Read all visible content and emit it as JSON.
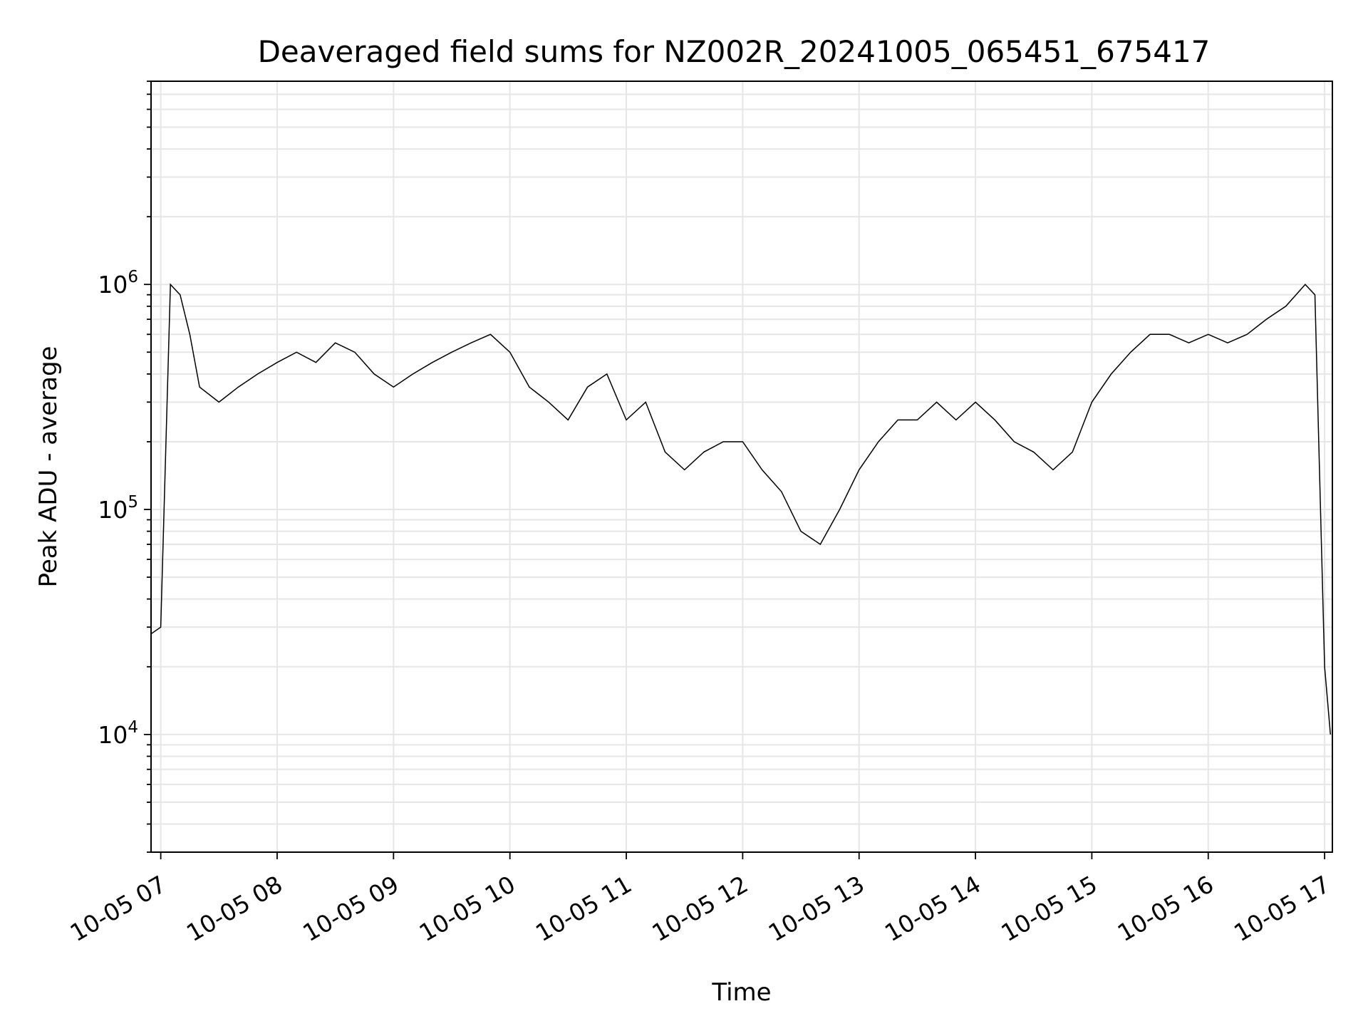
{
  "chart_data": {
    "type": "line",
    "title": "Deaveraged field sums for NZ002R_20241005_065451_675417",
    "xlabel": "Time",
    "ylabel": "Peak ADU - average",
    "yscale": "log",
    "ylim": [
      3000,
      8000000
    ],
    "xlim": [
      "2024-10-05 06:55",
      "2024-10-05 17:04"
    ],
    "grid": true,
    "x_tick_labels": [
      "10-05 07",
      "10-05 08",
      "10-05 09",
      "10-05 10",
      "10-05 11",
      "10-05 12",
      "10-05 13",
      "10-05 14",
      "10-05 15",
      "10-05 16",
      "10-05 17"
    ],
    "y_tick_labels": [
      {
        "base": "10",
        "exp": "4",
        "value": 10000
      },
      {
        "base": "10",
        "exp": "5",
        "value": 100000
      },
      {
        "base": "10",
        "exp": "6",
        "value": 1000000
      }
    ],
    "line_color": "#000000",
    "series": [
      {
        "x": [
          "2024-10-05 06:55",
          "2024-10-05 07:00",
          "2024-10-05 07:05",
          "2024-10-05 07:10",
          "2024-10-05 07:15",
          "2024-10-05 07:20",
          "2024-10-05 07:30",
          "2024-10-05 07:40",
          "2024-10-05 07:50",
          "2024-10-05 08:00",
          "2024-10-05 08:10",
          "2024-10-05 08:20",
          "2024-10-05 08:30",
          "2024-10-05 08:40",
          "2024-10-05 08:50",
          "2024-10-05 09:00",
          "2024-10-05 09:10",
          "2024-10-05 09:20",
          "2024-10-05 09:30",
          "2024-10-05 09:40",
          "2024-10-05 09:50",
          "2024-10-05 10:00",
          "2024-10-05 10:10",
          "2024-10-05 10:20",
          "2024-10-05 10:30",
          "2024-10-05 10:40",
          "2024-10-05 10:50",
          "2024-10-05 11:00",
          "2024-10-05 11:10",
          "2024-10-05 11:20",
          "2024-10-05 11:30",
          "2024-10-05 11:40",
          "2024-10-05 11:50",
          "2024-10-05 12:00",
          "2024-10-05 12:10",
          "2024-10-05 12:20",
          "2024-10-05 12:30",
          "2024-10-05 12:40",
          "2024-10-05 12:50",
          "2024-10-05 13:00",
          "2024-10-05 13:10",
          "2024-10-05 13:20",
          "2024-10-05 13:30",
          "2024-10-05 13:40",
          "2024-10-05 13:50",
          "2024-10-05 14:00",
          "2024-10-05 14:10",
          "2024-10-05 14:20",
          "2024-10-05 14:30",
          "2024-10-05 14:40",
          "2024-10-05 14:50",
          "2024-10-05 15:00",
          "2024-10-05 15:10",
          "2024-10-05 15:20",
          "2024-10-05 15:30",
          "2024-10-05 15:40",
          "2024-10-05 15:50",
          "2024-10-05 16:00",
          "2024-10-05 16:10",
          "2024-10-05 16:20",
          "2024-10-05 16:30",
          "2024-10-05 16:40",
          "2024-10-05 16:50",
          "2024-10-05 16:55",
          "2024-10-05 17:00",
          "2024-10-05 17:03"
        ],
        "y": [
          28000,
          30000,
          1000000,
          900000,
          600000,
          350000,
          300000,
          350000,
          400000,
          450000,
          500000,
          450000,
          550000,
          500000,
          400000,
          350000,
          400000,
          450000,
          500000,
          550000,
          600000,
          500000,
          350000,
          300000,
          250000,
          350000,
          400000,
          250000,
          300000,
          180000,
          150000,
          180000,
          200000,
          200000,
          150000,
          120000,
          80000,
          70000,
          100000,
          150000,
          200000,
          250000,
          250000,
          300000,
          250000,
          300000,
          250000,
          200000,
          180000,
          150000,
          180000,
          300000,
          400000,
          500000,
          600000,
          600000,
          550000,
          600000,
          550000,
          600000,
          700000,
          800000,
          1000000,
          900000,
          20000,
          10000
        ]
      }
    ]
  }
}
